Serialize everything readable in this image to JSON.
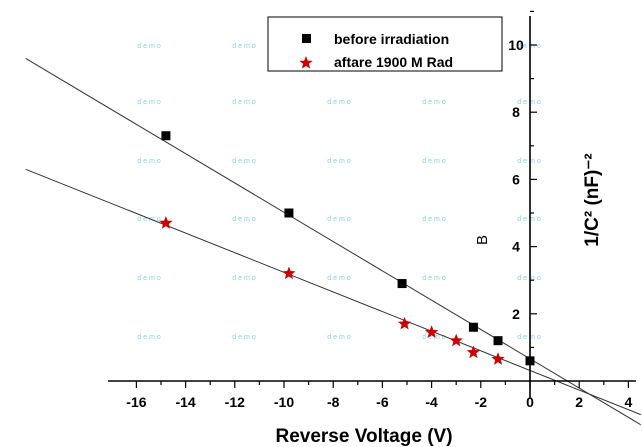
{
  "chart_data": {
    "type": "scatter",
    "xlabel": "Reverse Voltage (V)",
    "ylabel": "1/C² (nF)⁻²",
    "xlim": [
      -21,
      4.5
    ],
    "ylim": [
      -0.6,
      11.2
    ],
    "x_ticks": [
      -16,
      -14,
      -12,
      -10,
      -8,
      -6,
      -4,
      -2,
      0,
      2,
      4
    ],
    "y_ticks": [
      2,
      4,
      6,
      8,
      10
    ],
    "grid": false,
    "legend_position": "top-center",
    "series": [
      {
        "name": "before irradiation",
        "marker": "square",
        "color": "#000000",
        "points": [
          {
            "x": -14.8,
            "y": 7.3
          },
          {
            "x": -9.8,
            "y": 5.0
          },
          {
            "x": -5.2,
            "y": 2.9
          },
          {
            "x": -2.3,
            "y": 1.6
          },
          {
            "x": -1.3,
            "y": 1.2
          },
          {
            "x": 0.0,
            "y": 0.6
          }
        ],
        "fit_line": {
          "x": [
            -20.5,
            4.5
          ],
          "y": [
            9.6,
            -1.3
          ]
        }
      },
      {
        "name": "aftare 1900 M Rad",
        "marker": "star",
        "color": "#cc0000",
        "points": [
          {
            "x": -14.8,
            "y": 4.7
          },
          {
            "x": -9.8,
            "y": 3.2
          },
          {
            "x": -5.1,
            "y": 1.7
          },
          {
            "x": -4.0,
            "y": 1.45
          },
          {
            "x": -3.0,
            "y": 1.2
          },
          {
            "x": -2.3,
            "y": 0.85
          },
          {
            "x": -1.3,
            "y": 0.65
          }
        ],
        "fit_line": {
          "x": [
            -20.5,
            4.5
          ],
          "y": [
            6.3,
            -1.0
          ]
        }
      }
    ],
    "stray_label": "B",
    "watermark": "demo"
  }
}
